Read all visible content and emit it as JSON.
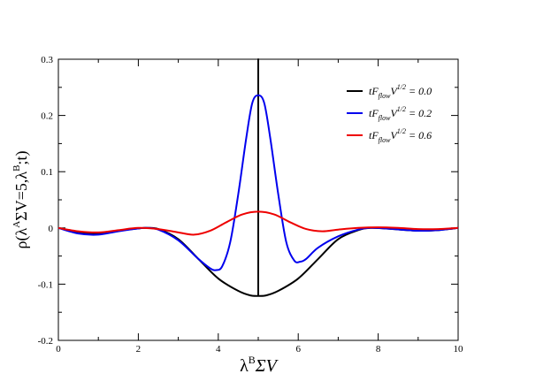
{
  "chart_data": {
    "type": "line",
    "xlabel": {
      "base": "λ",
      "sup": "B",
      "rest": "ΣV"
    },
    "ylabel": {
      "p1": "ρ(λ",
      "s1": "A",
      "p2": "ΣV=5,λ",
      "s2": "B",
      "p3": ";t)"
    },
    "xlim": [
      0,
      10
    ],
    "ylim": [
      -0.2,
      0.3
    ],
    "xticks": [
      0,
      2,
      4,
      6,
      8,
      10
    ],
    "yticks": [
      -0.2,
      -0.1,
      0,
      0.1,
      0.2,
      0.3
    ],
    "ytick_labels": [
      "-0.2",
      "-0.1",
      "0",
      "0.1",
      "0.2",
      "0.3"
    ],
    "grid": false,
    "legend_position": "top-right",
    "series": [
      {
        "name": {
          "a": "tF",
          "sub": "flow",
          "b": "V",
          "sup": "1/2",
          "c": " = 0.0"
        },
        "color": "#000000",
        "x": [
          0,
          0.5,
          1,
          1.5,
          2,
          2.2,
          2.5,
          3,
          3.5,
          4,
          4.5,
          4.8,
          5,
          5,
          5,
          5.2,
          5.5,
          6,
          6.5,
          7,
          7.5,
          7.8,
          8.2,
          9,
          9.5,
          10
        ],
        "y": [
          0,
          -0.007,
          -0.01,
          -0.005,
          -0.001,
          0,
          -0.002,
          -0.02,
          -0.055,
          -0.09,
          -0.112,
          -0.12,
          -0.121,
          0.3,
          -0.121,
          -0.12,
          -0.112,
          -0.09,
          -0.055,
          -0.02,
          -0.004,
          0,
          -0.001,
          -0.005,
          -0.004,
          0
        ]
      },
      {
        "name": {
          "a": "tF",
          "sub": "flow",
          "b": "V",
          "sup": "1/2",
          "c": " = 0.2"
        },
        "color": "#0000ee",
        "x": [
          0,
          0.5,
          1,
          1.5,
          2,
          2.2,
          2.5,
          3,
          3.5,
          3.8,
          3.95,
          4.1,
          4.3,
          4.5,
          4.7,
          4.85,
          5,
          5.15,
          5.3,
          5.5,
          5.7,
          5.9,
          6.05,
          6.2,
          6.5,
          7,
          7.5,
          7.8,
          8.2,
          9,
          9.5,
          10
        ],
        "y": [
          0,
          -0.01,
          -0.012,
          -0.006,
          -0.001,
          0,
          -0.003,
          -0.022,
          -0.055,
          -0.072,
          -0.075,
          -0.068,
          -0.025,
          0.06,
          0.16,
          0.222,
          0.236,
          0.222,
          0.16,
          0.06,
          -0.025,
          -0.058,
          -0.06,
          -0.055,
          -0.035,
          -0.015,
          -0.003,
          0,
          -0.001,
          -0.005,
          -0.004,
          0
        ]
      },
      {
        "name": {
          "a": "tF",
          "sub": "flow",
          "b": "V",
          "sup": "1/2",
          "c": " = 0.6"
        },
        "color": "#ee0000",
        "x": [
          0,
          0.5,
          1,
          1.5,
          2,
          2.5,
          3,
          3.4,
          3.8,
          4.2,
          4.6,
          5,
          5.4,
          5.8,
          6.2,
          6.6,
          7,
          7.5,
          8,
          8.5,
          9,
          9.5,
          10
        ],
        "y": [
          0,
          -0.006,
          -0.008,
          -0.004,
          0,
          -0.002,
          -0.008,
          -0.012,
          -0.005,
          0.01,
          0.024,
          0.029,
          0.024,
          0.01,
          -0.002,
          -0.006,
          -0.003,
          0,
          0.001,
          0,
          -0.002,
          -0.002,
          0
        ]
      }
    ]
  }
}
